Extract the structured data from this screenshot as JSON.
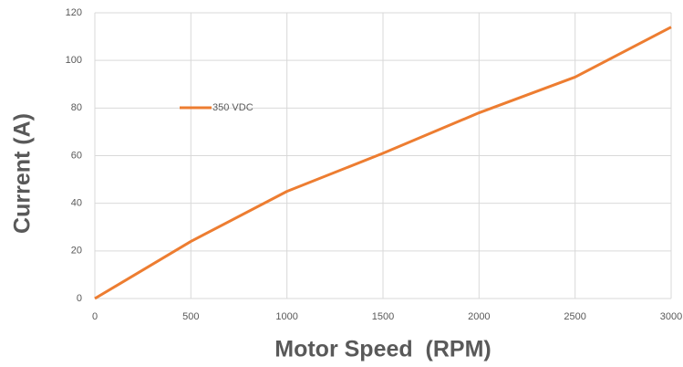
{
  "chart_data": {
    "type": "line",
    "x_label": "Motor Speed  (RPM)",
    "y_label": "Current (A)",
    "x": [
      0,
      500,
      1000,
      1500,
      2000,
      2500,
      3000
    ],
    "series": [
      {
        "name": "350 VDC",
        "color": "#ed7d31",
        "values": [
          0,
          24,
          45,
          61,
          78,
          93,
          114
        ]
      }
    ],
    "xlim": [
      0,
      3000
    ],
    "xticks": [
      0,
      500,
      1000,
      1500,
      2000,
      2500,
      3000
    ],
    "ylim": [
      0,
      120
    ],
    "yticks": [
      0,
      20,
      40,
      60,
      80,
      100,
      120
    ],
    "grid": true,
    "legend": "upper left"
  }
}
